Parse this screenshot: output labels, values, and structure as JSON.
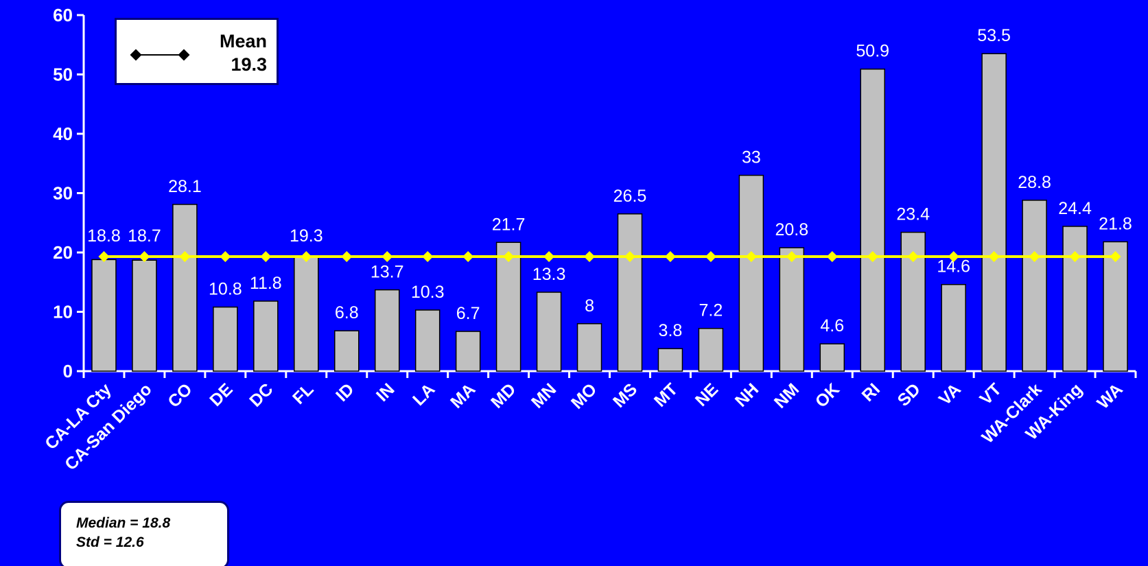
{
  "chart_data": {
    "type": "bar",
    "categories": [
      "CA-LA Cty",
      "CA-San Diego",
      "CO",
      "DE",
      "DC",
      "FL",
      "ID",
      "IN",
      "LA",
      "MA",
      "MD",
      "MN",
      "MO",
      "MS",
      "MT",
      "NE",
      "NH",
      "NM",
      "OK",
      "RI",
      "SD",
      "VA",
      "VT",
      "WA-Clark",
      "WA-King",
      "WA"
    ],
    "values": [
      18.8,
      18.7,
      28.1,
      10.8,
      11.8,
      19.3,
      6.8,
      13.7,
      10.3,
      6.7,
      21.7,
      13.3,
      8,
      26.5,
      3.8,
      7.2,
      33,
      20.8,
      4.6,
      50.9,
      23.4,
      14.6,
      53.5,
      28.8,
      24.4,
      21.8
    ],
    "value_labels": [
      "18.8",
      "18.7",
      "28.1",
      "10.8",
      "11.8",
      "19.3",
      "6.8",
      "13.7",
      "10.3",
      "6.7",
      "21.7",
      "13.3",
      "8",
      "26.5",
      "3.8",
      "7.2",
      "33",
      "20.8",
      "4.6",
      "50.9",
      "23.4",
      "14.6",
      "53.5",
      "28.8",
      "24.4",
      "21.8"
    ],
    "mean": 19.3,
    "ylim": [
      0,
      60
    ],
    "yticks": [
      0,
      10,
      20,
      30,
      40,
      50,
      60
    ],
    "title": "",
    "xlabel": "",
    "ylabel": "",
    "grid": false,
    "legend_position": "top-left",
    "legend": {
      "name": "Mean",
      "value": "19.3"
    },
    "stats": {
      "median": "Median = 18.8",
      "std": "Std = 12.6"
    },
    "colors": {
      "background": "#0000FF",
      "bar_fill": "#C0C0C0",
      "bar_stroke": "#000000",
      "mean_line": "#FFFF00",
      "axis": "#FFFFFF",
      "text": "#FFFFFF"
    }
  }
}
